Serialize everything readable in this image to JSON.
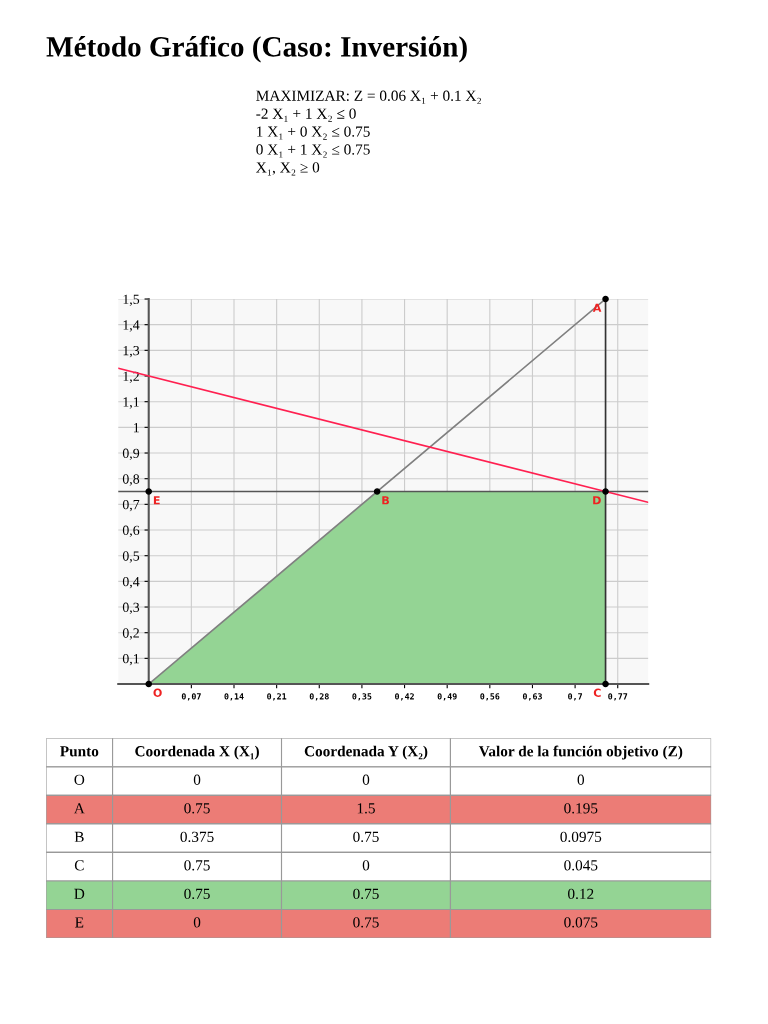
{
  "chart_data": [
    {
      "type": "line",
      "title": "Método Gráfico (Caso: Inversión)",
      "subtitle": "MAXIMIZAR: Z = 0.06 X₁ + 0.1 X₂",
      "annotations": [
        "-2 X₁ + 1 X₂ ≤ 0",
        "1 X₁ + 0 X₂ ≤ 0.75",
        "0 X₁ + 1 X₂ ≤ 0.75",
        "X₁, X₂ ≥ 0",
        {
          "text": "O",
          "x": 0,
          "y": 0
        },
        {
          "text": "A",
          "x": 0.75,
          "y": 1.5
        },
        {
          "text": "B",
          "x": 0.375,
          "y": 0.75
        },
        {
          "text": "C",
          "x": 0.75,
          "y": 0
        },
        {
          "text": "D",
          "x": 0.75,
          "y": 0.75
        },
        {
          "text": "E",
          "x": 0,
          "y": 0.75
        }
      ],
      "series": [
        {
          "type": "area",
          "color": "#94d494",
          "x": [
            0,
            0.375,
            0.75,
            0.75
          ],
          "values": [
            0,
            0.75,
            0.75,
            0
          ]
        },
        {
          "type": "line",
          "color": "#808080",
          "x": [
            0,
            0.75
          ],
          "values": [
            0,
            1.5
          ]
        },
        {
          "type": "line",
          "color": "#ff2050",
          "x": [
            -0.05,
            0.82
          ],
          "values": [
            1.23,
            0.708
          ]
        },
        {
          "type": "scatter",
          "color": "#000000",
          "marker": "circle",
          "x": [
            0,
            0.75,
            0.375,
            0.75,
            0.75,
            0
          ],
          "values": [
            0,
            1.5,
            0.75,
            0,
            0.75,
            0.75
          ]
        }
      ],
      "ref_lines": [
        {
          "axis": "y",
          "value": 0.75,
          "color": "#555555"
        },
        {
          "axis": "x",
          "value": 0.75,
          "color": "#333333"
        }
      ],
      "xlim": [
        -0.05,
        0.82
      ],
      "xticks": [
        {
          "value": 0.07,
          "label": "0,07"
        },
        {
          "value": 0.14,
          "label": "0,14"
        },
        {
          "value": 0.21,
          "label": "0,21"
        },
        {
          "value": 0.28,
          "label": "0,28"
        },
        {
          "value": 0.35,
          "label": "0,35"
        },
        {
          "value": 0.42,
          "label": "0,42"
        },
        {
          "value": 0.49,
          "label": "0,49"
        },
        {
          "value": 0.56,
          "label": "0,56"
        },
        {
          "value": 0.63,
          "label": "0,63"
        },
        {
          "value": 0.7,
          "label": "0,7"
        },
        {
          "value": 0.77,
          "label": "0,77"
        }
      ],
      "ylim": [
        0,
        1.5
      ],
      "yticks": [
        {
          "value": 0.1,
          "label": "0,1"
        },
        {
          "value": 0.2,
          "label": "0,2"
        },
        {
          "value": 0.3,
          "label": "0,3"
        },
        {
          "value": 0.4,
          "label": "0,4"
        },
        {
          "value": 0.5,
          "label": "0,5"
        },
        {
          "value": 0.6,
          "label": "0,6"
        },
        {
          "value": 0.7,
          "label": "0,7"
        },
        {
          "value": 0.8,
          "label": "0,8"
        },
        {
          "value": 0.9,
          "label": "0,9"
        },
        {
          "value": 1,
          "label": "1"
        },
        {
          "value": 1.1,
          "label": "1,1"
        },
        {
          "value": 1.2,
          "label": "1,2"
        },
        {
          "value": 1.3,
          "label": "1,3"
        },
        {
          "value": 1.4,
          "label": "1,4"
        },
        {
          "value": 1.5,
          "label": "1,5"
        }
      ],
      "grid": true
    },
    {
      "type": "other",
      "annotations": [
        "Punto",
        "Coordenada X (X₁)",
        "Coordenada Y (X₂)",
        "Valor de la función objetivo (Z)",
        "O",
        "0",
        "0",
        "0",
        "A",
        "0.75",
        "1.5",
        "0.195",
        "B",
        "0.375",
        "0.75",
        "0.0975",
        "C",
        "0.75",
        "0",
        "0.045",
        "D",
        "0.75",
        "0.75",
        "0.12",
        "E",
        "0",
        "0.75",
        "0.075"
      ],
      "colors": [
        "#ffffff",
        "#ffffff",
        "#ec7c76",
        "#ffffff",
        "#ffffff",
        "#94d494",
        "#ec7c76"
      ]
    }
  ]
}
